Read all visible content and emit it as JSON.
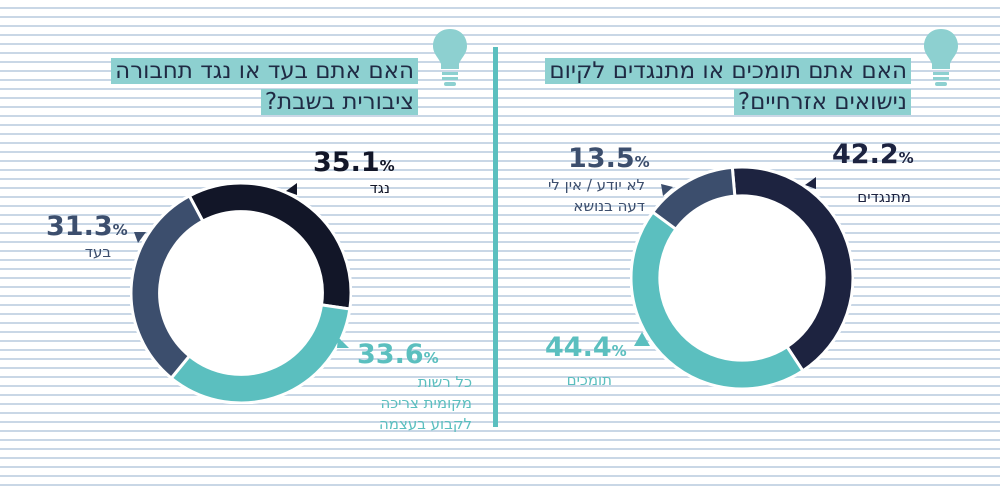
{
  "chart_data": [
    {
      "type": "pie",
      "title": "האם אתם תומכים או מתנגדים לקיום נישואים אזרחיים?",
      "slices": [
        {
          "label": "מתנגדים",
          "value": 42.2,
          "color": "#1d2340"
        },
        {
          "label": "תומכים",
          "value": 44.4,
          "color": "#5bbfbf"
        },
        {
          "label": "לא יודע / אין לי דעה בנושא",
          "value": 13.5,
          "color": "#3c4e6d"
        }
      ]
    },
    {
      "type": "pie",
      "title": "האם אתם בעד או נגד תחבורה ציבורית בשבת?",
      "slices": [
        {
          "label": "נגד",
          "value": 35.1,
          "color": "#121628"
        },
        {
          "label": "כל רשות מקומית צריכה לקבוע בעצמה",
          "value": 33.6,
          "color": "#5bbfbf"
        },
        {
          "label": "בעד",
          "value": 31.3,
          "color": "#3c4e6d"
        }
      ]
    }
  ],
  "texts": {
    "right_title_line1": "האם אתם תומכים או מתנגדים לקיום",
    "right_title_line2": "נישואים אזרחיים?",
    "left_title_line1": "האם אתם בעד או נגד תחבורה",
    "left_title_line2": "ציבורית בשבת?",
    "percent_sign": "%",
    "r_oppose_value": "42.2",
    "r_oppose_label": "מתנגדים",
    "r_support_value": "44.4",
    "r_support_label": "תומכים",
    "r_dontknow_value": "13.5",
    "r_dontknow_label_line1": "לא יודע / אין לי",
    "r_dontknow_label_line2": "דעה בנושא",
    "l_against_value": "35.1",
    "l_against_label": "נגד",
    "l_for_value": "31.3",
    "l_for_label": "בעד",
    "l_local_value": "33.6",
    "l_local_label_line1": "כל רשות",
    "l_local_label_line2": "מקומית צריכה",
    "l_local_label_line3": "לקבוע בעצמה"
  },
  "colors": {
    "navy": "#1d2340",
    "dark_navy": "#121628",
    "slate": "#3c4e6d",
    "teal": "#5bbfbf",
    "title_highlight": "#8dd0d0",
    "bulb": "#8dd0d0"
  },
  "icons": [
    "lightbulb-icon",
    "arrow-marker-icon"
  ]
}
